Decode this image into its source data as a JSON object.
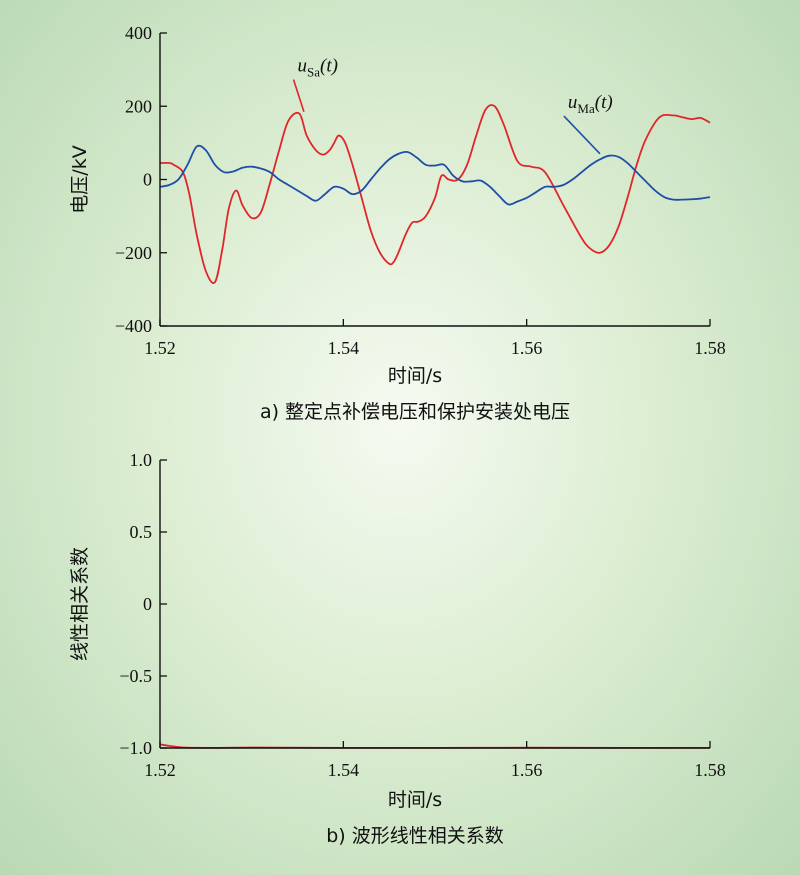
{
  "chart_data": [
    {
      "type": "line",
      "caption": "a) 整定点补偿电压和保护安装处电压",
      "xlabel": "时间/s",
      "ylabel": "电压/kV",
      "xlim": [
        1.52,
        1.58
      ],
      "ylim": [
        -400,
        400
      ],
      "xticks": [
        "1.52",
        "1.54",
        "1.56",
        "1.58"
      ],
      "yticks": [
        "400",
        "200",
        "0",
        "−200",
        "−400"
      ],
      "ytick_values": [
        400,
        200,
        0,
        -200,
        -400
      ],
      "grid": false,
      "series": [
        {
          "name": "uSa(t)",
          "color": "#e0262a",
          "x": [
            1.52,
            1.521,
            1.5215,
            1.5225,
            1.5232,
            1.524,
            1.525,
            1.526,
            1.5268,
            1.5275,
            1.5283,
            1.529,
            1.53,
            1.531,
            1.532,
            1.533,
            1.534,
            1.5352,
            1.536,
            1.537,
            1.5378,
            1.5385,
            1.539,
            1.5395,
            1.5402,
            1.541,
            1.542,
            1.543,
            1.544,
            1.545,
            1.5455,
            1.546,
            1.5468,
            1.5475,
            1.5482,
            1.549,
            1.55,
            1.5507,
            1.5515,
            1.5525,
            1.5535,
            1.5545,
            1.5555,
            1.5565,
            1.5575,
            1.559,
            1.5605,
            1.562,
            1.564,
            1.566,
            1.567,
            1.568,
            1.569,
            1.57,
            1.571,
            1.572,
            1.573,
            1.5745,
            1.576,
            1.577,
            1.578,
            1.579,
            1.58
          ],
          "y": [
            45,
            45,
            40,
            20,
            -40,
            -150,
            -250,
            -280,
            -190,
            -80,
            -30,
            -70,
            -105,
            -90,
            -10,
            80,
            160,
            180,
            120,
            80,
            68,
            80,
            100,
            120,
            100,
            40,
            -50,
            -140,
            -200,
            -230,
            -225,
            -200,
            -150,
            -118,
            -115,
            -100,
            -50,
            10,
            0,
            0,
            40,
            120,
            190,
            200,
            150,
            50,
            35,
            20,
            -70,
            -160,
            -190,
            -200,
            -180,
            -130,
            -50,
            40,
            110,
            170,
            175,
            170,
            165,
            168,
            155
          ]
        },
        {
          "name": "uMa(t)",
          "color": "#1f4ea8",
          "x": [
            1.52,
            1.521,
            1.522,
            1.523,
            1.524,
            1.525,
            1.526,
            1.527,
            1.528,
            1.529,
            1.53,
            1.531,
            1.532,
            1.533,
            1.534,
            1.535,
            1.536,
            1.537,
            1.538,
            1.539,
            1.54,
            1.541,
            1.542,
            1.543,
            1.544,
            1.545,
            1.546,
            1.547,
            1.548,
            1.549,
            1.55,
            1.551,
            1.552,
            1.553,
            1.554,
            1.555,
            1.556,
            1.557,
            1.558,
            1.559,
            1.56,
            1.561,
            1.562,
            1.563,
            1.564,
            1.565,
            1.566,
            1.567,
            1.568,
            1.569,
            1.57,
            1.571,
            1.572,
            1.573,
            1.574,
            1.575,
            1.576,
            1.577,
            1.578,
            1.579,
            1.58
          ],
          "y": [
            -20,
            -15,
            0,
            40,
            90,
            80,
            40,
            20,
            22,
            32,
            35,
            30,
            20,
            0,
            -15,
            -30,
            -45,
            -58,
            -40,
            -20,
            -25,
            -40,
            -30,
            0,
            30,
            55,
            70,
            75,
            60,
            40,
            38,
            40,
            10,
            -5,
            -5,
            -3,
            -20,
            -45,
            -68,
            -60,
            -50,
            -35,
            -20,
            -20,
            -15,
            0,
            20,
            40,
            55,
            65,
            62,
            45,
            20,
            -5,
            -30,
            -48,
            -55,
            -55,
            -54,
            -52,
            -48
          ]
        }
      ],
      "annotations": [
        {
          "main": "u",
          "sub": "Sa",
          "suffix": "(t)",
          "series": "uSa(t)",
          "label_x": 1.535,
          "label_y": 295,
          "point_x": 1.5357,
          "point_y": 185
        },
        {
          "main": "u",
          "sub": "Ma",
          "suffix": "(t)",
          "series": "uMa(t)",
          "label_x": 1.5645,
          "label_y": 195,
          "point_x": 1.568,
          "point_y": 70
        }
      ]
    },
    {
      "type": "line",
      "caption": "b) 波形线性相关系数",
      "xlabel": "时间/s",
      "ylabel": "线性相关系数",
      "xlim": [
        1.52,
        1.58
      ],
      "ylim": [
        -1.0,
        1.0
      ],
      "xticks": [
        "1.52",
        "1.54",
        "1.56",
        "1.58"
      ],
      "yticks": [
        "1.0",
        "0.5",
        "0",
        "−0.5",
        "−1.0"
      ],
      "ytick_values": [
        1.0,
        0.5,
        0,
        -0.5,
        -1.0
      ],
      "grid": false,
      "series": [
        {
          "color": "#e0262a",
          "x": [
            1.52,
            1.521,
            1.522,
            1.523,
            1.526,
            1.53,
            1.54,
            1.55,
            1.56,
            1.57,
            1.58
          ],
          "y": [
            -0.975,
            -0.985,
            -0.993,
            -0.998,
            -0.999,
            -0.997,
            -0.999,
            -0.999,
            -0.998,
            -0.999,
            -0.999
          ]
        }
      ]
    }
  ]
}
